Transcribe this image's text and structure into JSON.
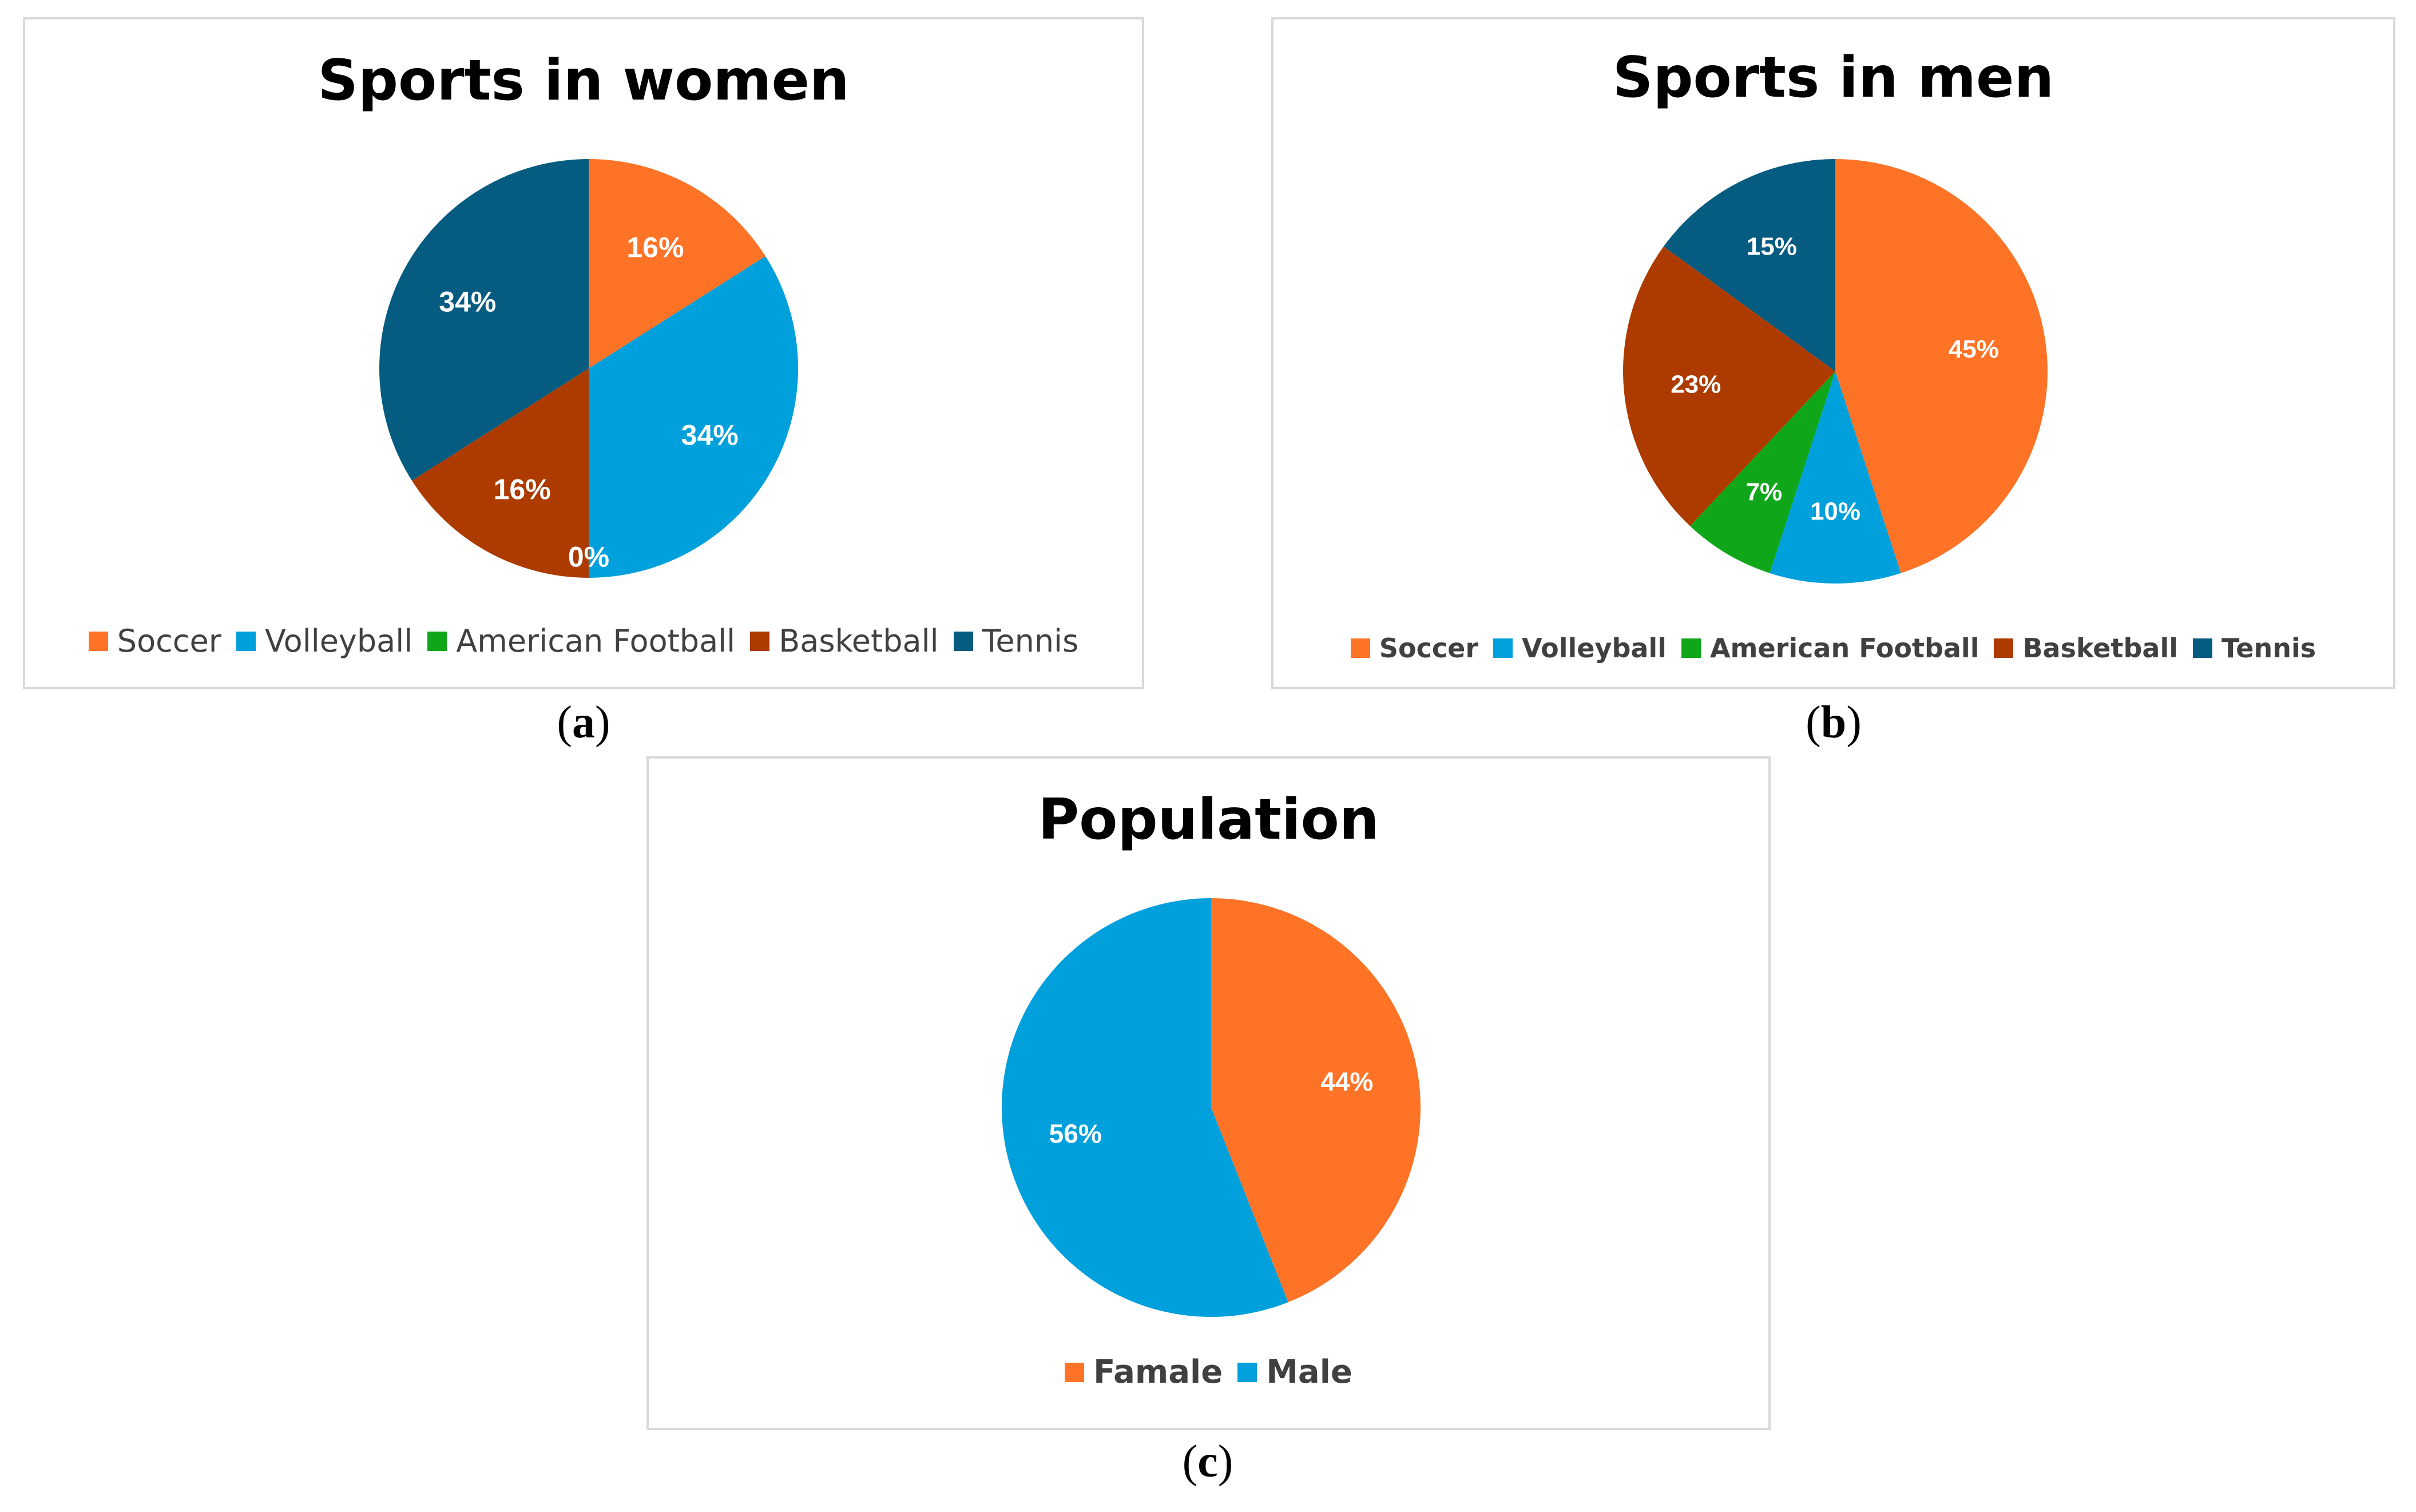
{
  "chart_data": [
    {
      "type": "pie",
      "panel": "a",
      "title": "Sports in women",
      "categories": [
        "Soccer",
        "Volleyball",
        "American Football",
        "Basketball",
        "Tennis"
      ],
      "values": [
        16,
        34,
        0,
        16,
        34
      ],
      "labels": [
        "16%",
        "34%",
        "0%",
        "16%",
        "34%"
      ],
      "colors": [
        "#ff7327",
        "#00a0dc",
        "#10a619",
        "#ad3b00",
        "#055b80"
      ],
      "legend": "bottom"
    },
    {
      "type": "pie",
      "panel": "b",
      "title": "Sports in men",
      "categories": [
        "Soccer",
        "Volleyball",
        "American Football",
        "Basketball",
        "Tennis"
      ],
      "values": [
        45,
        10,
        7,
        23,
        15
      ],
      "labels": [
        "45%",
        "10%",
        "7%",
        "23%",
        "15%"
      ],
      "colors": [
        "#ff7327",
        "#00a0dc",
        "#10a619",
        "#ad3b00",
        "#055b80"
      ],
      "legend": "bottom"
    },
    {
      "type": "pie",
      "panel": "c",
      "title": "Population",
      "categories": [
        "Famale",
        "Male"
      ],
      "values": [
        44,
        56
      ],
      "labels": [
        "44%",
        "56%"
      ],
      "colors": [
        "#ff7327",
        "#00a0dc"
      ],
      "legend": "bottom"
    }
  ],
  "captions": {
    "a": "a",
    "b": "b",
    "c": "c"
  }
}
